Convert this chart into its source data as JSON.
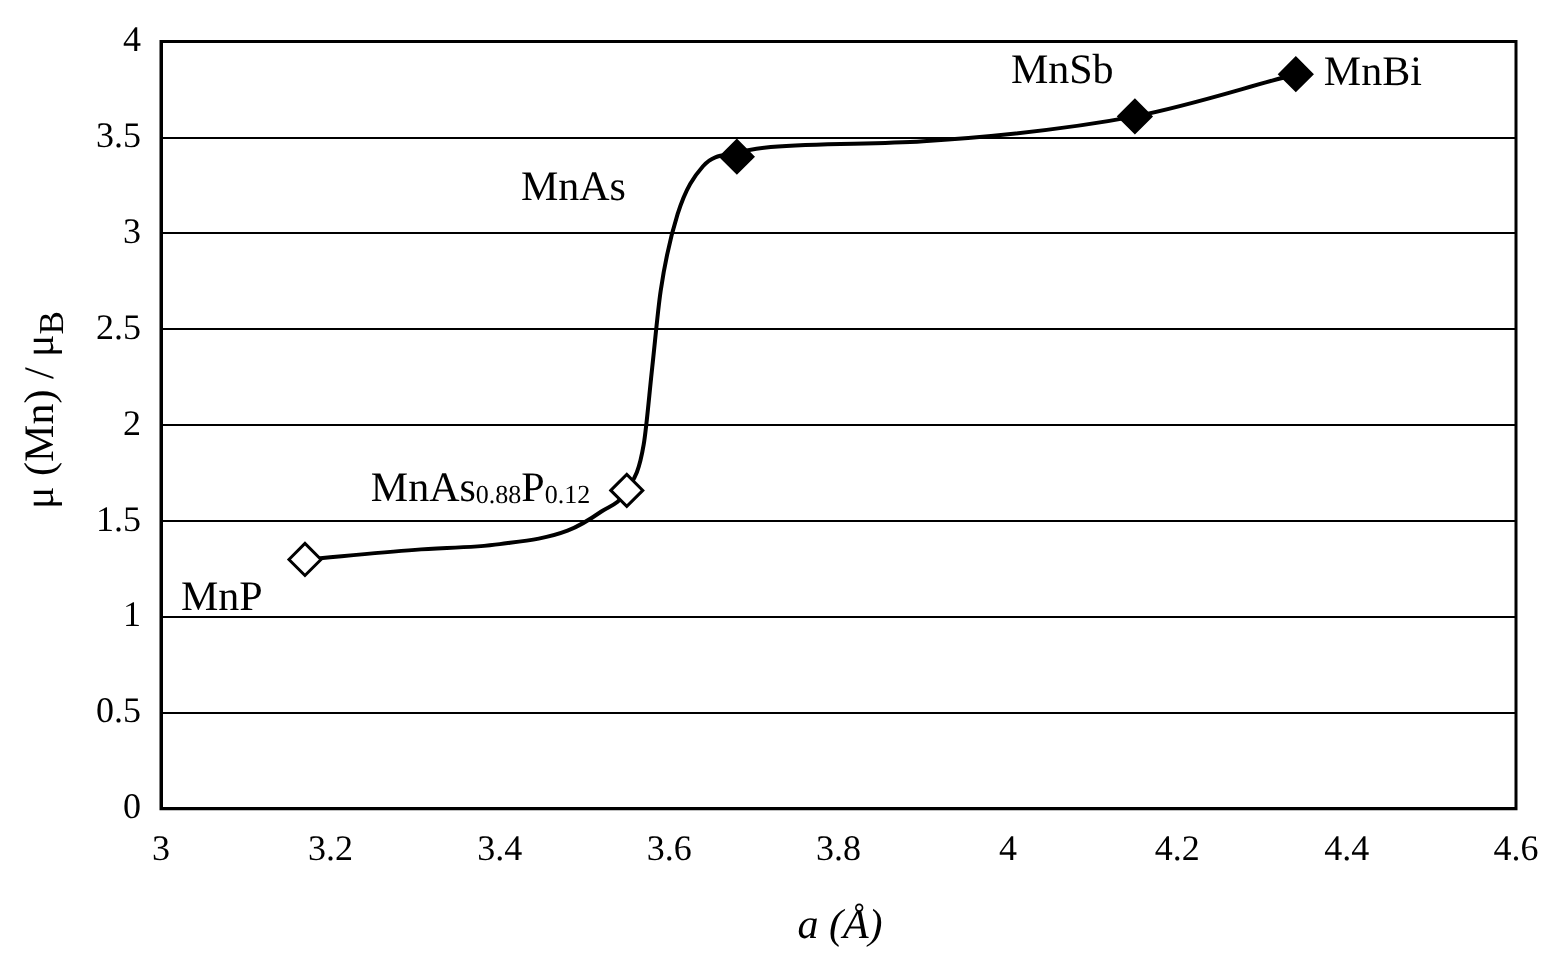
{
  "chart_data": {
    "type": "scatter",
    "xlabel": "a (Å)",
    "ylabel": "μ (Mn) / μ$_{B}$",
    "xlim": [
      3,
      4.6
    ],
    "xticks": [
      3,
      3.2,
      3.4,
      3.6,
      3.8,
      4,
      4.2,
      4.4,
      4.6
    ],
    "ylim": [
      0,
      4
    ],
    "yticks": [
      0,
      0.5,
      1,
      1.5,
      2,
      2.5,
      3,
      3.5,
      4
    ],
    "grid": "y",
    "legend": false,
    "series": [
      {
        "type": "line",
        "marker": "none",
        "color": "#000000",
        "x": [
          3.17,
          3.3,
          3.4,
          3.48,
          3.52,
          3.55,
          3.57,
          3.58,
          3.59,
          3.61,
          3.64,
          3.68,
          3.72,
          3.9,
          4.15,
          4.34
        ],
        "values": [
          1.3,
          1.35,
          1.38,
          1.45,
          1.55,
          1.66,
          1.9,
          2.3,
          2.7,
          3.1,
          3.35,
          3.42,
          3.45,
          3.48,
          3.61,
          3.83
        ]
      },
      {
        "type": "scatter",
        "marker": "diamond",
        "color": "#ffffff",
        "x": [
          3.17,
          3.55
        ],
        "values": [
          1.3,
          1.66
        ]
      },
      {
        "type": "scatter",
        "marker": "diamond",
        "color": "#000000",
        "x": [
          3.68,
          4.15,
          4.34
        ],
        "values": [
          3.4,
          3.61,
          3.83
        ]
      }
    ],
    "annotations": [
      {
        "text": "MnP",
        "x": 3.17,
        "y": 1.3
      },
      {
        "text": "MnAs$_{0.88}$P$_{0.12}$",
        "x": 3.55,
        "y": 1.66
      },
      {
        "text": "MnAs",
        "x": 3.68,
        "y": 3.4
      },
      {
        "text": "MnSb",
        "x": 4.15,
        "y": 3.61
      },
      {
        "text": "MnBi",
        "x": 4.34,
        "y": 3.83
      }
    ]
  }
}
